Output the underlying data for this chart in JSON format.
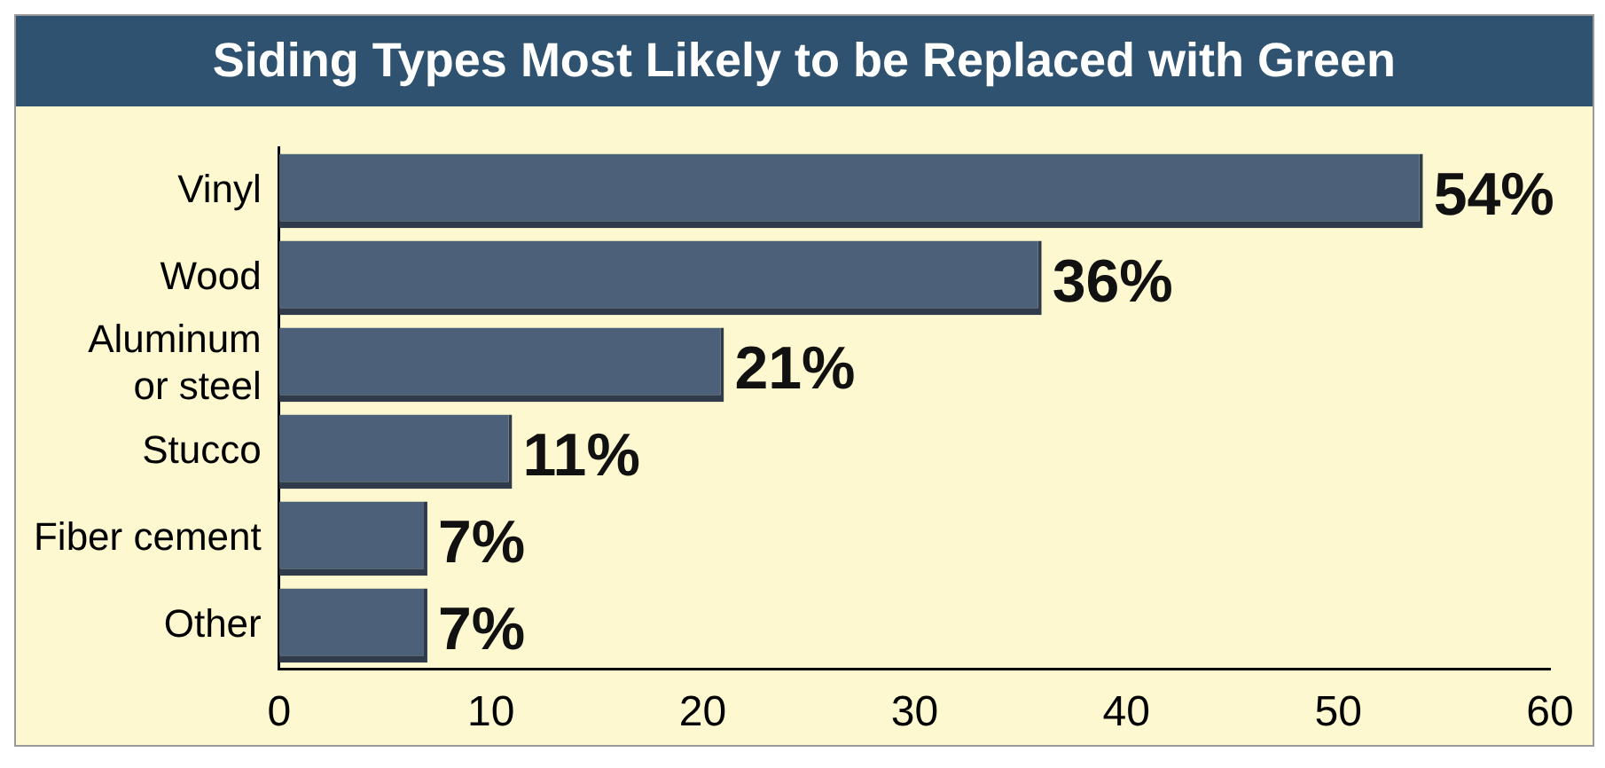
{
  "chart_data": {
    "type": "bar",
    "orientation": "horizontal",
    "title": "Siding Types Most Likely to be Replaced with Green",
    "categories": [
      "Vinyl",
      "Wood",
      "Aluminum or steel",
      "Stucco",
      "Fiber cement",
      "Other"
    ],
    "values": [
      54,
      36,
      21,
      11,
      7,
      7
    ],
    "color": "#4d6079",
    "value_labels": [
      "54%",
      "36%",
      "21%",
      "11%",
      "7%",
      "7%"
    ],
    "xlim": [
      0,
      60
    ],
    "xticks": [
      0,
      10,
      20,
      30,
      40,
      50,
      60
    ],
    "grid": false,
    "legend": false
  }
}
